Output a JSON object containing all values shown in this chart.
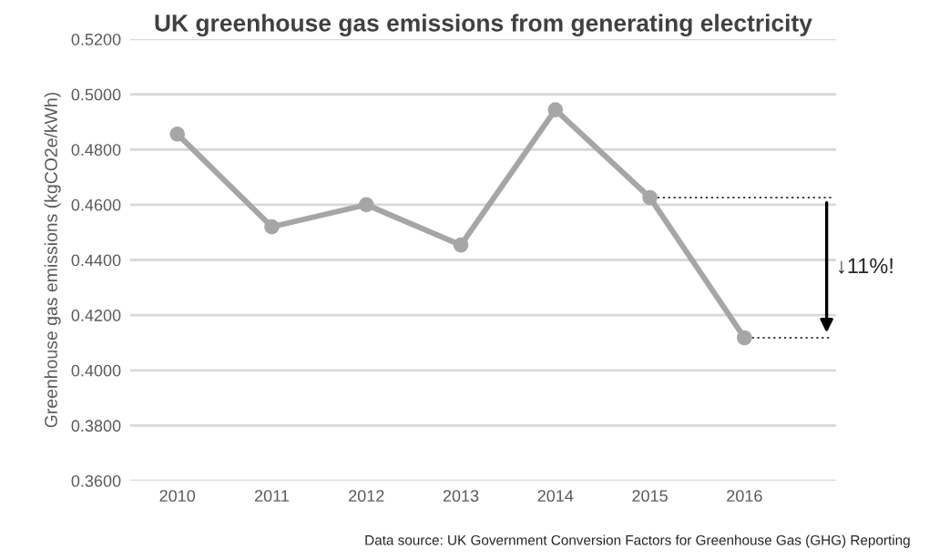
{
  "chart_data": {
    "type": "line",
    "title": "UK greenhouse gas emissions from generating electricity",
    "ylabel": "Greenhouse gas emissions (kgCO2e/kWh)",
    "categories": [
      "2010",
      "2011",
      "2012",
      "2013",
      "2014",
      "2015",
      "2016"
    ],
    "series": [
      {
        "color": "#a6a6a6",
        "values": [
          0.4856,
          0.452,
          0.46,
          0.4454,
          0.4944,
          0.4626,
          0.4118
        ]
      }
    ],
    "ylim": [
      0.36,
      0.52
    ],
    "yticks": [
      {
        "value": 0.36,
        "label": "0.3600"
      },
      {
        "value": 0.38,
        "label": "0.3800"
      },
      {
        "value": 0.4,
        "label": "0.4000"
      },
      {
        "value": 0.42,
        "label": "0.4200"
      },
      {
        "value": 0.44,
        "label": "0.4400"
      },
      {
        "value": 0.46,
        "label": "0.4600"
      },
      {
        "value": 0.48,
        "label": "0.4800"
      },
      {
        "value": 0.5,
        "label": "0.5000"
      },
      {
        "value": 0.52,
        "label": "0.5200"
      }
    ],
    "grid": "y",
    "marker": "circle",
    "line_style": "solid",
    "ref_lines": [
      {
        "axis": "y",
        "value": 0.4626,
        "color": "#404040",
        "line_style": "dotted"
      },
      {
        "axis": "y",
        "value": 0.4118,
        "color": "#404040",
        "line_style": "dotted"
      }
    ],
    "annotations": [
      "↓11%!",
      "Data source: UK Government Conversion Factors for Greenhouse Gas (GHG) Reporting"
    ]
  }
}
